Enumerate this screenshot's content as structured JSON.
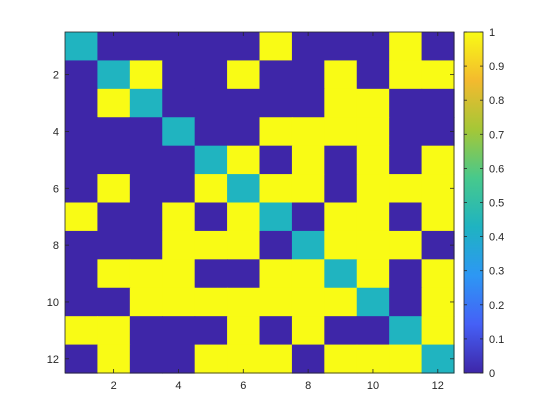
{
  "chart_data": {
    "type": "heatmap",
    "title": "",
    "xlabel": "",
    "ylabel": "",
    "rows": 12,
    "cols": 12,
    "xlim": [
      0.5,
      12.5
    ],
    "ylim": [
      0.5,
      12.5
    ],
    "y_direction": "reverse",
    "xticks": [
      2,
      4,
      6,
      8,
      10,
      12
    ],
    "yticks": [
      2,
      4,
      6,
      8,
      10,
      12
    ],
    "values": [
      [
        0.5,
        0,
        0,
        0,
        0,
        0,
        1,
        0,
        0,
        0,
        1,
        0
      ],
      [
        0,
        0.5,
        1,
        0,
        0,
        1,
        0,
        0,
        1,
        0,
        1,
        1
      ],
      [
        0,
        1,
        0.5,
        0,
        0,
        0,
        0,
        0,
        1,
        1,
        0,
        0
      ],
      [
        0,
        0,
        0,
        0.5,
        0,
        0,
        1,
        1,
        1,
        1,
        0,
        0
      ],
      [
        0,
        0,
        0,
        0,
        0.5,
        1,
        0,
        1,
        0,
        1,
        0,
        1
      ],
      [
        0,
        1,
        0,
        0,
        1,
        0.5,
        1,
        1,
        0,
        1,
        1,
        1
      ],
      [
        1,
        0,
        0,
        1,
        0,
        1,
        0.5,
        0,
        1,
        1,
        0,
        1
      ],
      [
        0,
        0,
        0,
        1,
        1,
        1,
        0,
        0.5,
        1,
        1,
        1,
        0
      ],
      [
        0,
        1,
        1,
        1,
        0,
        0,
        1,
        1,
        0.5,
        1,
        0,
        1
      ],
      [
        0,
        0,
        1,
        1,
        1,
        1,
        1,
        1,
        1,
        0.5,
        0,
        1
      ],
      [
        1,
        1,
        0,
        0,
        0,
        1,
        0,
        1,
        0,
        0,
        0.5,
        1
      ],
      [
        0,
        1,
        0,
        0,
        1,
        1,
        1,
        0,
        1,
        1,
        1,
        0.5
      ]
    ],
    "colorbar": {
      "range": [
        0,
        1
      ],
      "ticks": [
        "0",
        "0.1",
        "0.2",
        "0.3",
        "0.4",
        "0.5",
        "0.6",
        "0.7",
        "0.8",
        "0.9",
        "1"
      ],
      "colormap": "parula",
      "stops": [
        "#3e26a8",
        "#4560f6",
        "#2d97f4",
        "#1fb3c1",
        "#47c98c",
        "#a5c737",
        "#f3ba2e",
        "#f9fb15"
      ]
    },
    "colors": {
      "low": "#3e26a8",
      "mid": "#20b4c0",
      "high": "#f9fb15"
    },
    "grid": false,
    "legend": "none"
  }
}
